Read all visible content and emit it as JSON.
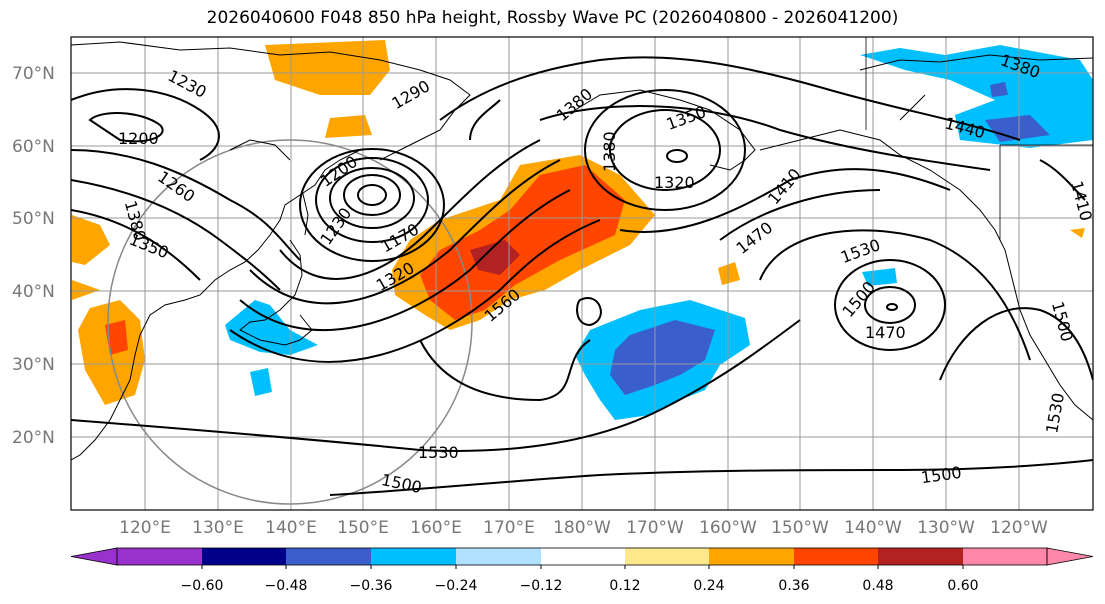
{
  "title": "2026040600 F048 850 hPa height, Rossby Wave PC (2026040800 - 2026041200)",
  "lat_labels": [
    "70°N",
    "60°N",
    "50°N",
    "40°N",
    "30°N",
    "20°N"
  ],
  "lon_labels": [
    "120°E",
    "130°E",
    "140°E",
    "150°E",
    "160°E",
    "170°E",
    "180°W",
    "170°W",
    "160°W",
    "150°W",
    "140°W",
    "130°W",
    "120°W"
  ],
  "contour_labels": [
    "1230",
    "1200",
    "1260",
    "1380",
    "1350",
    "1290",
    "1200",
    "1230",
    "1170",
    "1320",
    "1560",
    "1380",
    "1380",
    "1350",
    "1320",
    "1410",
    "1470",
    "1440",
    "1380",
    "1410",
    "1530",
    "1500",
    "1470",
    "1500",
    "1530",
    "1530",
    "1500",
    "1500"
  ],
  "colorbar": {
    "ticks": [
      "−0.60",
      "−0.48",
      "−0.36",
      "−0.24",
      "−0.12",
      "0.12",
      "0.24",
      "0.36",
      "0.48",
      "0.60"
    ],
    "colors": [
      "#9932cc",
      "#00008b",
      "#3a5fcd",
      "#00bfff",
      "#b0e2ff",
      "#ffffff",
      "#ffe88c",
      "#ffa500",
      "#ff4500",
      "#b22222",
      "#ff88aa"
    ]
  },
  "map_info": {
    "variable": "850 hPa height",
    "shading": "Rossby Wave PC",
    "extent_lon": [
      110,
      -115
    ],
    "extent_lat": [
      10,
      75
    ]
  }
}
